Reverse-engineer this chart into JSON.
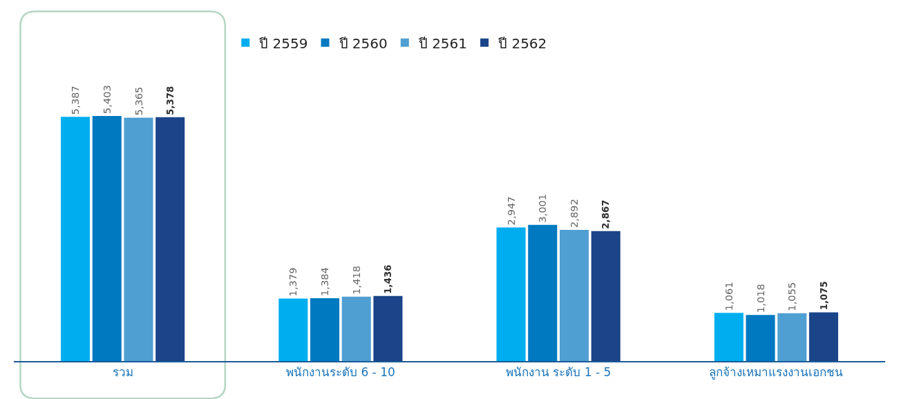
{
  "chart_data": {
    "type": "bar",
    "categories": [
      "รวม",
      "พนักงานระดับ 6 - 10",
      "พนักงาน ระดับ 1 - 5",
      "ลูกจ้างเหมาแรงงานเอกชน"
    ],
    "series": [
      {
        "name": "ปี 2559",
        "color": "#00aeef",
        "values": [
          5387,
          1379,
          2947,
          1061
        ],
        "value_labels": [
          "5,387",
          "1,379",
          "2,947",
          "1,061"
        ]
      },
      {
        "name": "ปี 2560",
        "color": "#0079c1",
        "values": [
          5403,
          1384,
          3001,
          1018
        ],
        "value_labels": [
          "5,403",
          "1,384",
          "3,001",
          "1,018"
        ]
      },
      {
        "name": "ปี 2561",
        "color": "#4f9fd3",
        "values": [
          5365,
          1418,
          2892,
          1055
        ],
        "value_labels": [
          "5,365",
          "1,418",
          "2,892",
          "1,055"
        ]
      },
      {
        "name": "ปี 2562",
        "color": "#1b4489",
        "values": [
          5378,
          1436,
          2867,
          1075
        ],
        "value_labels": [
          "5,378",
          "1,436",
          "2,867",
          "1,075"
        ]
      }
    ],
    "legend": "top",
    "tick_labels": "x"
  }
}
